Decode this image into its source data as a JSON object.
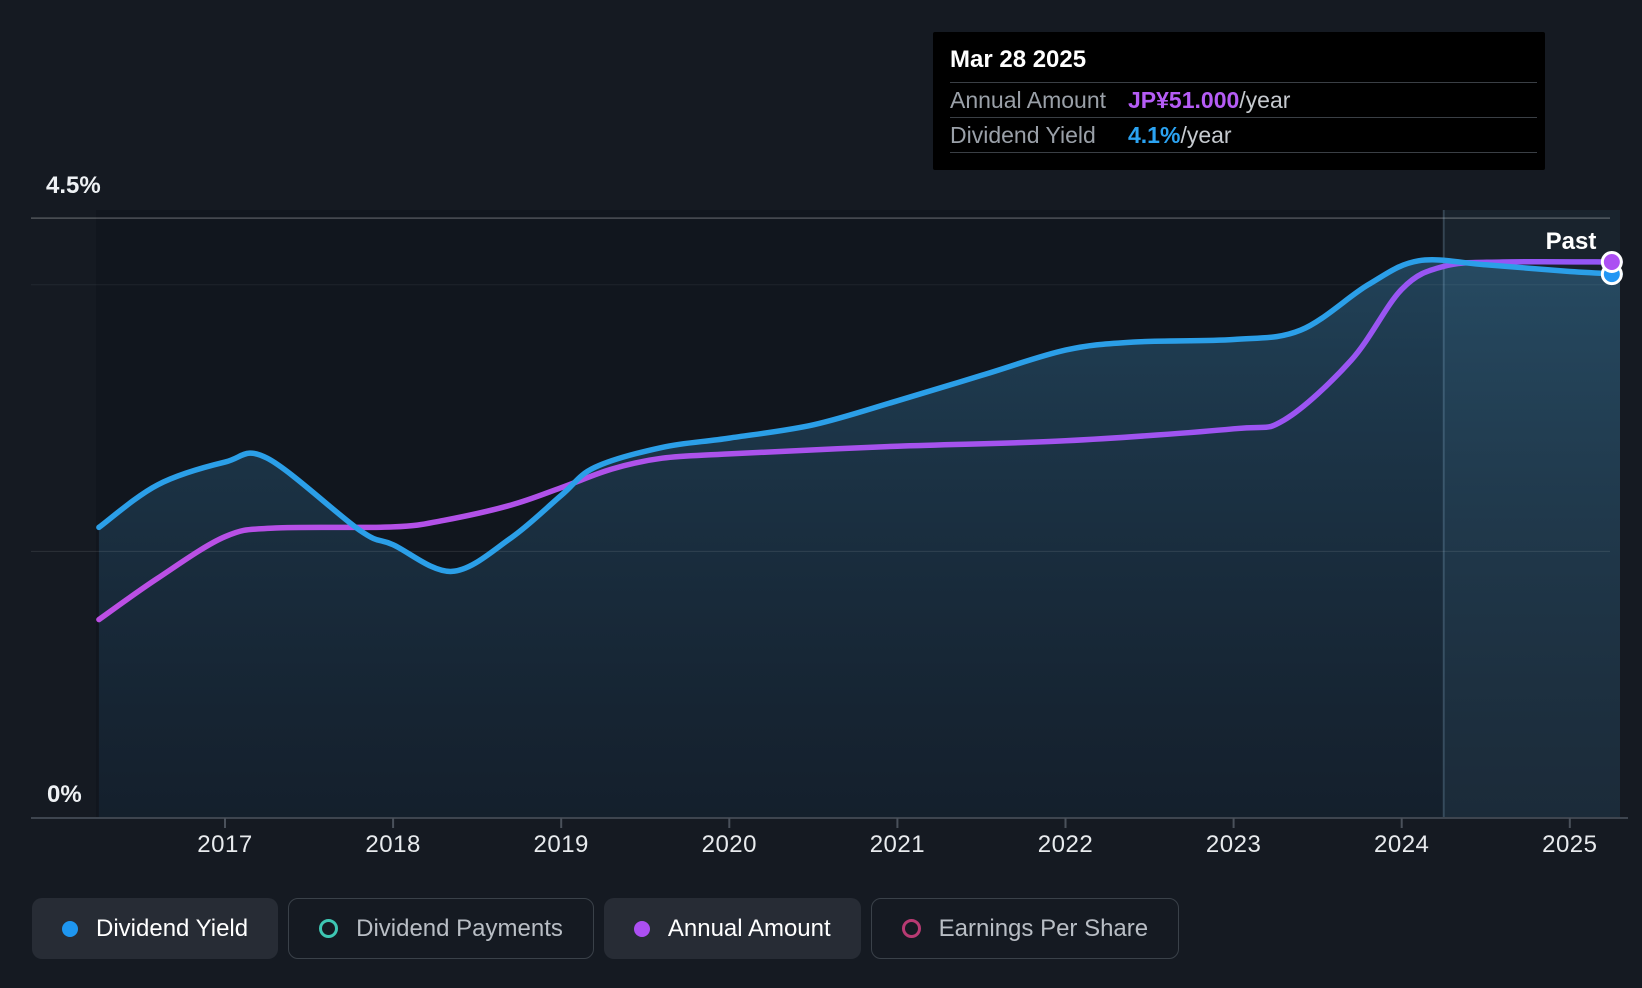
{
  "tooltip": {
    "date": "Mar 28 2025",
    "rows": [
      {
        "label": "Annual Amount",
        "value": "JP¥51.000",
        "suffix": "/year",
        "value_color": "#b55cf5"
      },
      {
        "label": "Dividend Yield",
        "value": "4.1%",
        "suffix": "/year",
        "value_color": "#2ba3f2"
      }
    ]
  },
  "y_axis": {
    "top_label": "4.5%",
    "bottom_label": "0%"
  },
  "x_axis": {
    "years": [
      "2017",
      "2018",
      "2019",
      "2020",
      "2021",
      "2022",
      "2023",
      "2024",
      "2025"
    ]
  },
  "past_label": "Past",
  "legend": [
    {
      "label": "Dividend Yield",
      "active": true,
      "marker": "dot",
      "color": "#1e96f0"
    },
    {
      "label": "Dividend Payments",
      "active": false,
      "marker": "ring",
      "color": "#3ec6b3"
    },
    {
      "label": "Annual Amount",
      "active": true,
      "marker": "dot",
      "color": "#ac4ff2"
    },
    {
      "label": "Earnings Per Share",
      "active": false,
      "marker": "ring",
      "color": "#b73a72"
    }
  ],
  "colors": {
    "dividend_yield_line": "#2b9fe8",
    "annual_amount_line": "#a854f0",
    "area_top": "rgba(64,150,200,0.34)",
    "area_bottom": "rgba(40,90,130,0.14)",
    "past_region": "rgba(130,190,235,0.08)",
    "marker_stroke": "#ffffff"
  },
  "chart_data": {
    "type": "line",
    "title": "Dividend history",
    "x_range": [
      2016.25,
      2025.3
    ],
    "ylim_pct": [
      0,
      4.5
    ],
    "y_gridlines_pct": [
      4.5,
      4.0,
      2.0
    ],
    "past_divider_x": 2024.25,
    "last_point": {
      "date": "Mar 28 2025",
      "annual_amount": "JP¥51.000/year",
      "dividend_yield_pct": 4.1
    },
    "series": [
      {
        "name": "Dividend Yield",
        "unit": "%",
        "axis": "pct",
        "x": [
          2016.25,
          2016.6,
          2017,
          2017.25,
          2017.8,
          2018,
          2018.35,
          2018.7,
          2019,
          2019.2,
          2019.6,
          2020,
          2020.5,
          2021,
          2021.5,
          2022,
          2022.4,
          2023,
          2023.4,
          2023.8,
          2024.1,
          2024.5,
          2025,
          2025.3
        ],
        "values": [
          2.18,
          2.5,
          2.67,
          2.7,
          2.16,
          2.05,
          1.85,
          2.1,
          2.42,
          2.63,
          2.78,
          2.85,
          2.95,
          3.13,
          3.32,
          3.51,
          3.57,
          3.59,
          3.66,
          4.0,
          4.18,
          4.15,
          4.1,
          4.08
        ]
      },
      {
        "name": "Annual Amount",
        "unit": "JP¥/year",
        "axis": "amount",
        "x": [
          2016.25,
          2016.6,
          2017,
          2017.3,
          2018,
          2018.3,
          2018.7,
          2019,
          2019.3,
          2019.6,
          2020,
          2021,
          2022,
          2023,
          2023.3,
          2023.7,
          2024,
          2024.25,
          2024.6,
          2025.3
        ],
        "values": [
          18.2,
          22.0,
          25.8,
          26.6,
          26.7,
          27.3,
          28.7,
          30.3,
          32.0,
          33.0,
          33.4,
          34.1,
          34.6,
          35.7,
          36.5,
          42.0,
          48.5,
          50.6,
          51.0,
          51.0
        ]
      }
    ],
    "markers": [
      {
        "series": "Annual Amount",
        "x": 2025.25,
        "value": 51.0,
        "color": "#ac4ff2"
      },
      {
        "series": "Dividend Yield",
        "x": 2025.25,
        "value": 4.08,
        "color": "#2196f3"
      }
    ],
    "legend_position": "bottom"
  }
}
